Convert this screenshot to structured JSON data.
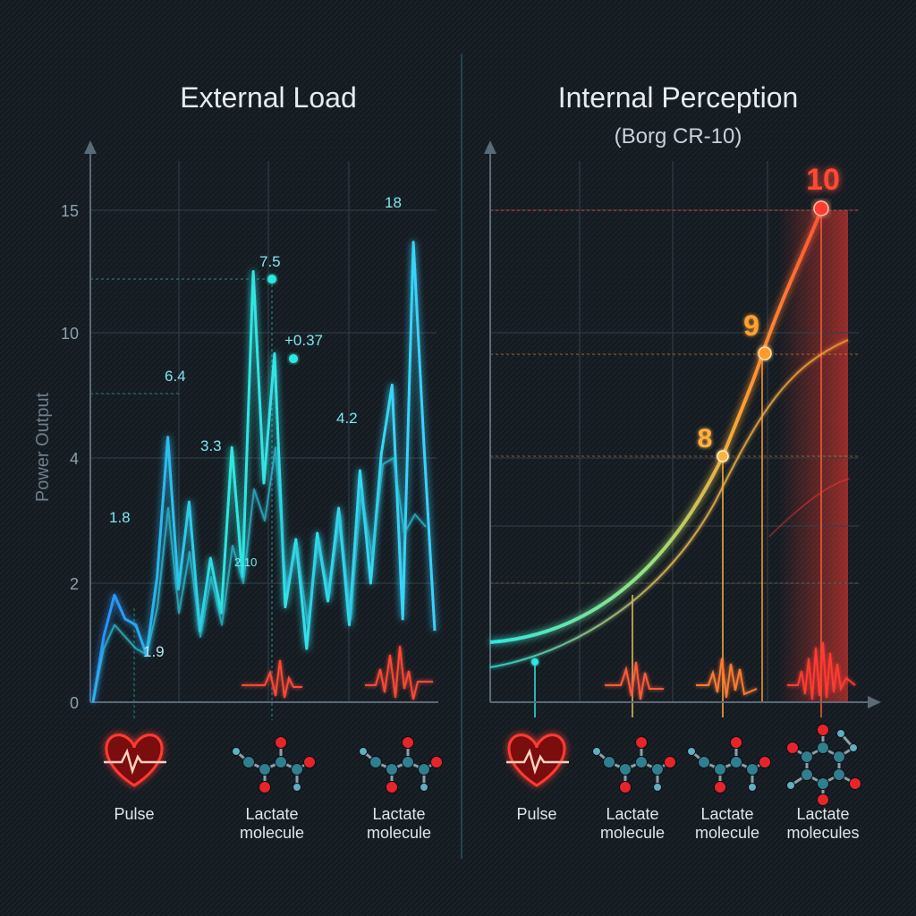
{
  "panels": {
    "left_title": "External Load",
    "right_title": "Internal Perception",
    "right_subtitle": "(Borg CR-10)"
  },
  "colors": {
    "background": "#141a20",
    "cyan": "#2ee8e0",
    "blue": "#2a86ff",
    "orange": "#ff9a2e",
    "red": "#ff3a30",
    "grid": "#3a4650"
  },
  "chart_data": [
    {
      "type": "line",
      "title": "External Load",
      "ylabel": "Power Output",
      "xlabel": "",
      "yticks": [
        "0",
        "2",
        "4",
        "10",
        "15"
      ],
      "annotations": [
        "1.8",
        "1.9",
        "6.4",
        "3.3",
        "2.10",
        "7.5",
        "+0.37",
        "4.2",
        "18"
      ],
      "series": [
        {
          "values": [
            0,
            1.1,
            1.8,
            1.4,
            1.3,
            0.8,
            2.1,
            5.0,
            1.9,
            3.3,
            1.2,
            2.4,
            1.5,
            4.5,
            2.1,
            12.5,
            3.6,
            9.0,
            1.6,
            2.7,
            0.9,
            2.8,
            1.7,
            3.2,
            1.3,
            3.8,
            2.0,
            4.2,
            7.5,
            1.4,
            13.7,
            4.5,
            1.2
          ]
        },
        {
          "values": [
            0,
            0.9,
            1.3,
            1.1,
            0.9,
            0.8,
            1.6,
            3.2,
            1.5,
            2.5,
            1.1,
            2.1,
            1.3,
            2.6,
            2.0,
            3.5,
            3.0,
            4.5,
            1.9,
            2.6,
            1.3,
            2.7,
            1.8,
            3.1,
            1.4,
            3.5,
            2.4,
            3.9,
            4.0,
            2.8,
            3.1,
            2.9
          ]
        }
      ]
    },
    {
      "type": "line",
      "title": "Internal Perception",
      "subtitle": "(Borg CR-10)",
      "xlabel": "",
      "ylabel": "",
      "points": [
        {
          "label": "8",
          "value": 8
        },
        {
          "label": "9",
          "value": 9
        },
        {
          "label": "10",
          "value": 10
        }
      ]
    }
  ],
  "icons": {
    "left": [
      {
        "name": "heart-pulse-icon",
        "label": [
          "Pulse"
        ]
      },
      {
        "name": "lactate-molecule-icon",
        "label": [
          "Lactate",
          "molecule"
        ]
      },
      {
        "name": "lactate-molecule-icon",
        "label": [
          "Lactate",
          "molecule"
        ]
      }
    ],
    "right": [
      {
        "name": "heart-pulse-icon",
        "label": [
          "Pulse"
        ]
      },
      {
        "name": "lactate-molecule-icon",
        "label": [
          "Lactate",
          "molecule"
        ]
      },
      {
        "name": "lactate-molecule-icon",
        "label": [
          "Lactate",
          "molecule"
        ]
      },
      {
        "name": "lactate-molecules-icon",
        "label": [
          "Lactate",
          "molecules"
        ]
      }
    ]
  }
}
